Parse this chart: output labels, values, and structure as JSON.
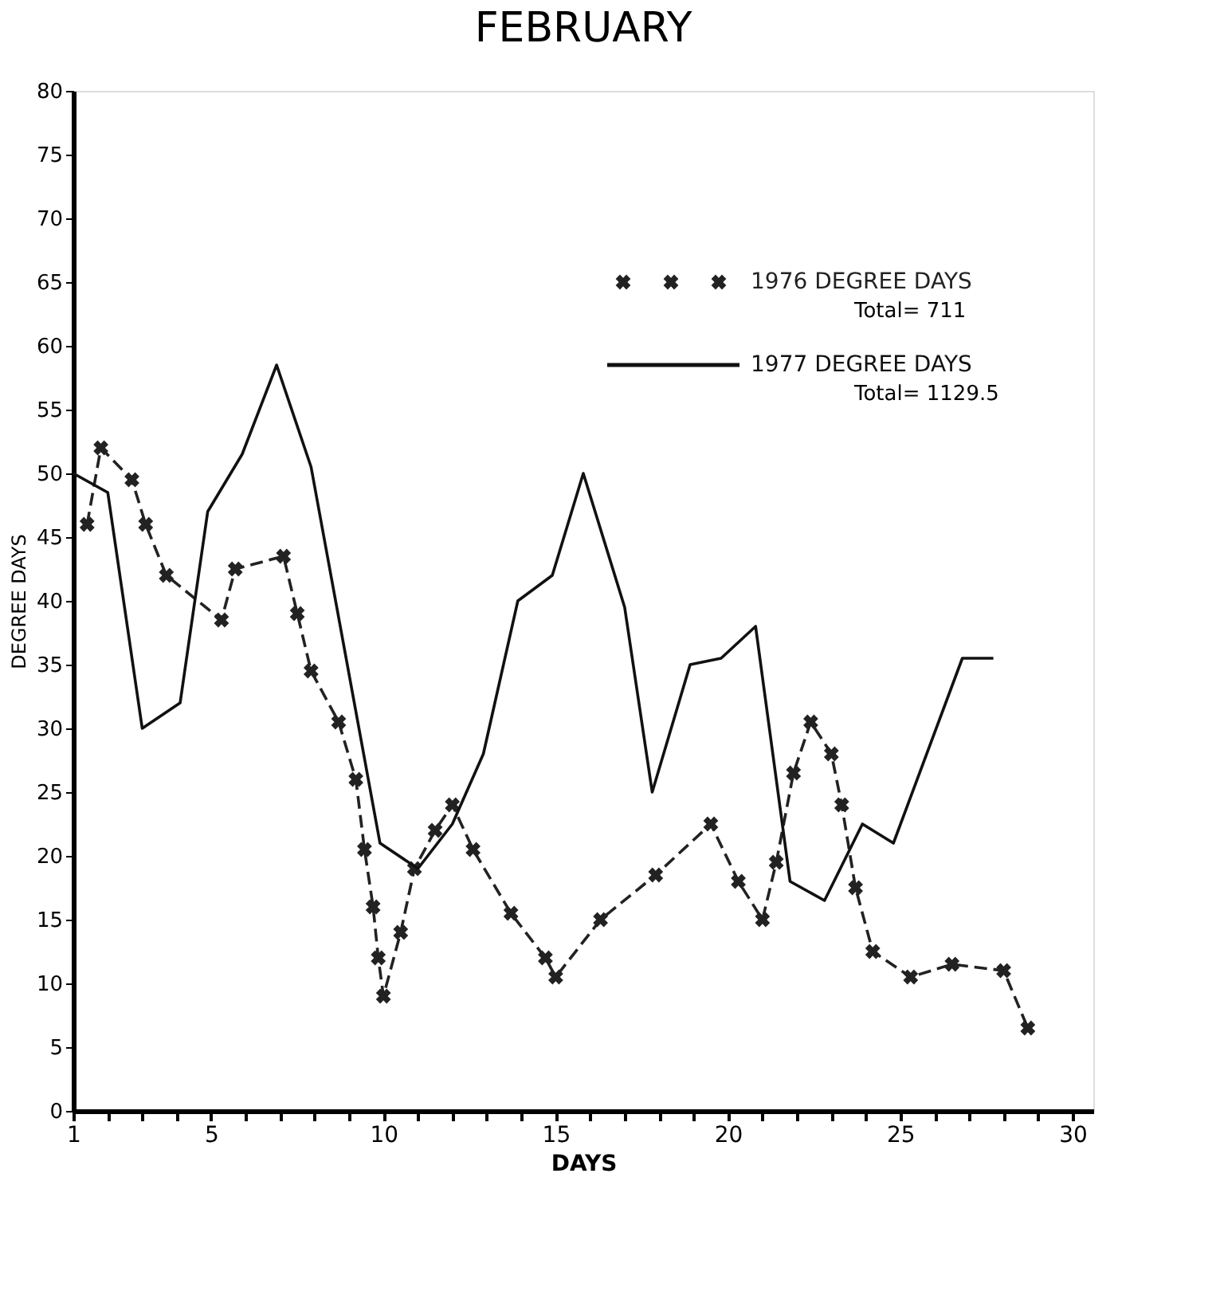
{
  "chart_data": {
    "type": "line",
    "title": "FEBRUARY",
    "xlabel": "DAYS",
    "ylabel": "DEGREE DAYS",
    "xlim": [
      1,
      30.6
    ],
    "xticks": [
      1,
      {
        "value": 2,
        "label": null
      },
      {
        "value": 3,
        "label": null
      },
      {
        "value": 4,
        "label": null
      },
      5,
      {
        "value": 6,
        "label": null
      },
      {
        "value": 7,
        "label": null
      },
      {
        "value": 8,
        "label": null
      },
      {
        "value": 9,
        "label": null
      },
      10,
      {
        "value": 11,
        "label": null
      },
      {
        "value": 12,
        "label": null
      },
      {
        "value": 13,
        "label": null
      },
      {
        "value": 14,
        "label": null
      },
      15,
      {
        "value": 16,
        "label": null
      },
      {
        "value": 17,
        "label": null
      },
      {
        "value": 18,
        "label": null
      },
      {
        "value": 19,
        "label": null
      },
      20,
      {
        "value": 21,
        "label": null
      },
      {
        "value": 22,
        "label": null
      },
      {
        "value": 23,
        "label": null
      },
      {
        "value": 24,
        "label": null
      },
      25,
      {
        "value": 26,
        "label": null
      },
      {
        "value": 27,
        "label": null
      },
      {
        "value": 28,
        "label": null
      },
      {
        "value": 29,
        "label": null
      },
      30
    ],
    "ylim": [
      0,
      80
    ],
    "yticks": [
      0,
      5,
      10,
      15,
      20,
      25,
      30,
      35,
      40,
      45,
      50,
      55,
      60,
      65,
      70,
      75,
      80
    ],
    "grid": false,
    "legend": "top right",
    "annotations": [
      "Total= 711",
      "Total= 1129.5"
    ],
    "series": [
      {
        "name": "1976 DEGREE DAYS",
        "color": "#222222",
        "line_style": "dashed",
        "marker": "cross",
        "x": [
          1.4,
          1.8,
          2.7,
          3.1,
          3.7,
          5.3,
          5.7,
          7.1,
          7.5,
          7.9,
          8.7,
          9.2,
          9.45,
          9.7,
          9.85,
          10.0,
          10.5,
          10.9,
          11.5,
          12.0,
          12.6,
          13.7,
          14.7,
          15.0,
          16.3,
          17.9,
          19.5,
          20.3,
          21.0,
          21.4,
          21.9,
          22.4,
          23.0,
          23.3,
          23.7,
          24.2,
          25.3,
          26.5,
          28.0,
          28.7
        ],
        "values": [
          46,
          52,
          49.5,
          46,
          42,
          38.5,
          42.5,
          43.5,
          39,
          34.5,
          30.5,
          26,
          20.5,
          16,
          12,
          9,
          14,
          19,
          22,
          24,
          20.5,
          15.5,
          12,
          10.5,
          15,
          18.5,
          22.5,
          18,
          15,
          19.5,
          26.5,
          30.5,
          28,
          24,
          17.5,
          12.5,
          10.5,
          11.5,
          11,
          6.5
        ]
      },
      {
        "name": "1977 DEGREE DAYS",
        "color": "#111111",
        "line_style": "solid",
        "marker": "none",
        "x": [
          1.0,
          2.0,
          3.0,
          4.1,
          4.9,
          5.9,
          6.9,
          7.9,
          9.9,
          11.0,
          12.0,
          12.9,
          13.9,
          14.9,
          15.8,
          17.0,
          17.8,
          18.9,
          19.8,
          20.8,
          21.8,
          22.8,
          23.9,
          24.8,
          26.8,
          27.7
        ],
        "values": [
          50,
          48.5,
          30,
          32,
          47,
          51.5,
          58.5,
          50.5,
          21,
          19,
          22.5,
          28,
          40,
          42,
          50,
          39.5,
          25,
          35,
          35.5,
          38,
          18,
          16.5,
          22.5,
          21,
          35.5,
          35.5
        ]
      }
    ]
  }
}
